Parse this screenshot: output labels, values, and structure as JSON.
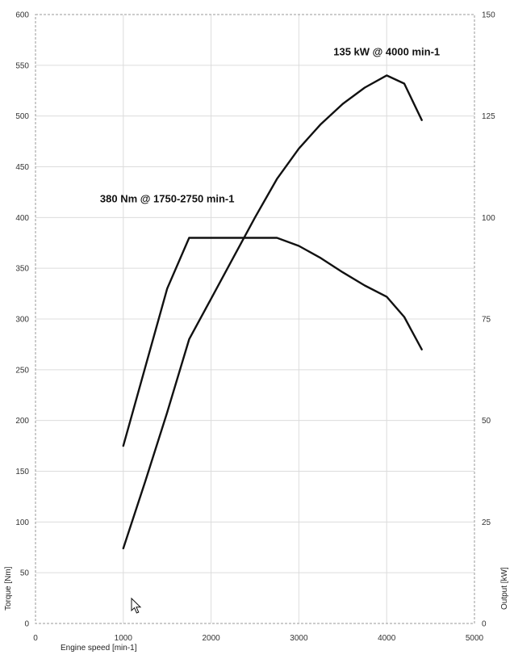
{
  "chart_data": {
    "type": "line",
    "xlabel": "Engine speed [min-1]",
    "ylabel_left": "Torque [Nm]",
    "ylabel_right": "Output [kW]",
    "xlim": [
      0,
      5000
    ],
    "ylim_left": [
      0,
      600
    ],
    "ylim_right": [
      0,
      150
    ],
    "x_ticks": [
      0,
      1000,
      2000,
      3000,
      4000,
      5000
    ],
    "y_left_ticks": [
      0,
      50,
      100,
      150,
      200,
      250,
      300,
      350,
      400,
      450,
      500,
      550,
      600
    ],
    "y_right_ticks": [
      0,
      25,
      50,
      75,
      100,
      125,
      150
    ],
    "grid": true,
    "series": [
      {
        "axis": "left",
        "x": [
          1000,
          1500,
          1750,
          2000,
          2250,
          2500,
          2750,
          3000,
          3250,
          3500,
          3750,
          4000,
          4200,
          4400
        ],
        "values": [
          175,
          330,
          380,
          380,
          380,
          380,
          380,
          372,
          360,
          346,
          333,
          322,
          302,
          270
        ]
      },
      {
        "axis": "right",
        "x": [
          1000,
          1250,
          1500,
          1750,
          2000,
          2250,
          2500,
          2750,
          3000,
          3250,
          3500,
          3750,
          4000,
          4200,
          4400
        ],
        "values": [
          18.5,
          35,
          52,
          70,
          80,
          90,
          100,
          109.5,
          117,
          123,
          128,
          132,
          135,
          133,
          124
        ]
      }
    ],
    "annotations": [
      {
        "text": "380 Nm @ 1750-2750 min-1",
        "x": 1500,
        "y_left": 415
      },
      {
        "text": "135 kW @ 4000 min-1",
        "x": 4000,
        "y_left": 560
      }
    ]
  }
}
